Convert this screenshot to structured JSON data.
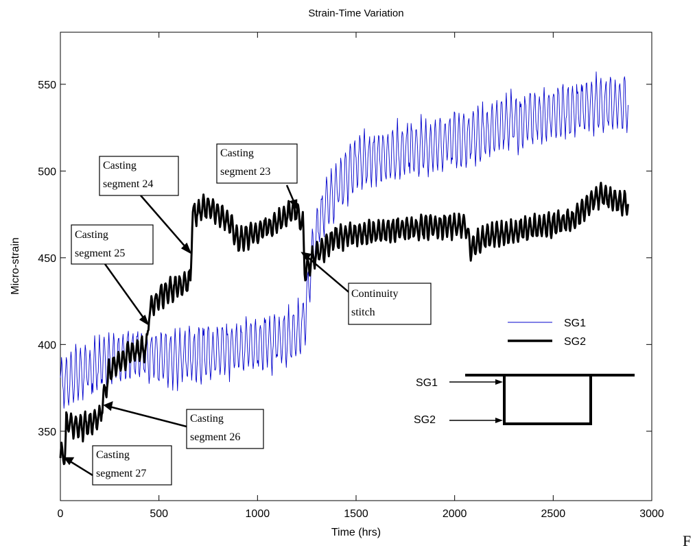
{
  "chart_data": {
    "type": "line",
    "title": "Strain-Time Variation",
    "xlabel": "Time (hrs)",
    "ylabel": "Micro-strain",
    "xlim": [
      0,
      3000
    ],
    "ylim": [
      310,
      580
    ],
    "xticks": [
      0,
      500,
      1000,
      1500,
      2000,
      2500,
      3000
    ],
    "yticks": [
      350,
      400,
      450,
      500,
      550
    ],
    "grid": false,
    "legend_position": "right",
    "series": [
      {
        "name": "SG1",
        "color": "#0000cc",
        "style": "thin",
        "anchors": [
          [
            0,
            378
          ],
          [
            100,
            382
          ],
          [
            200,
            388
          ],
          [
            300,
            392
          ],
          [
            400,
            395
          ],
          [
            600,
            392
          ],
          [
            800,
            396
          ],
          [
            1000,
            400
          ],
          [
            1200,
            405
          ],
          [
            1240,
            415
          ],
          [
            1280,
            452
          ],
          [
            1320,
            475
          ],
          [
            1400,
            490
          ],
          [
            1500,
            505
          ],
          [
            1600,
            508
          ],
          [
            1800,
            513
          ],
          [
            2000,
            518
          ],
          [
            2100,
            520
          ],
          [
            2300,
            528
          ],
          [
            2500,
            533
          ],
          [
            2700,
            538
          ],
          [
            2880,
            538
          ]
        ],
        "amplitude": 14
      },
      {
        "name": "SG2",
        "color": "#000000",
        "style": "thick",
        "anchors": [
          [
            0,
            336
          ],
          [
            25,
            337
          ],
          [
            30,
            355
          ],
          [
            100,
            352
          ],
          [
            200,
            358
          ],
          [
            220,
            370
          ],
          [
            250,
            385
          ],
          [
            350,
            395
          ],
          [
            440,
            398
          ],
          [
            450,
            420
          ],
          [
            500,
            428
          ],
          [
            600,
            434
          ],
          [
            660,
            437
          ],
          [
            670,
            475
          ],
          [
            750,
            480
          ],
          [
            860,
            470
          ],
          [
            900,
            460
          ],
          [
            1000,
            465
          ],
          [
            1100,
            470
          ],
          [
            1190,
            478
          ],
          [
            1230,
            470
          ],
          [
            1240,
            442
          ],
          [
            1300,
            452
          ],
          [
            1400,
            462
          ],
          [
            1600,
            465
          ],
          [
            1800,
            467
          ],
          [
            2000,
            469
          ],
          [
            2060,
            468
          ],
          [
            2080,
            455
          ],
          [
            2150,
            462
          ],
          [
            2400,
            467
          ],
          [
            2600,
            472
          ],
          [
            2740,
            487
          ],
          [
            2880,
            480
          ]
        ],
        "amplitude": 6
      }
    ],
    "annotations": [
      {
        "line1": "Casting",
        "line2": "segment 23"
      },
      {
        "line1": "Casting",
        "line2": "segment 24"
      },
      {
        "line1": "Casting",
        "line2": "segment 25"
      },
      {
        "line1": "Casting",
        "line2": "segment 26"
      },
      {
        "line1": "Casting",
        "line2": "segment 27"
      },
      {
        "line1": "Continuity",
        "line2": "stitch"
      }
    ],
    "schematic_labels": [
      "SG1",
      "SG2"
    ]
  },
  "stray_text": "F"
}
